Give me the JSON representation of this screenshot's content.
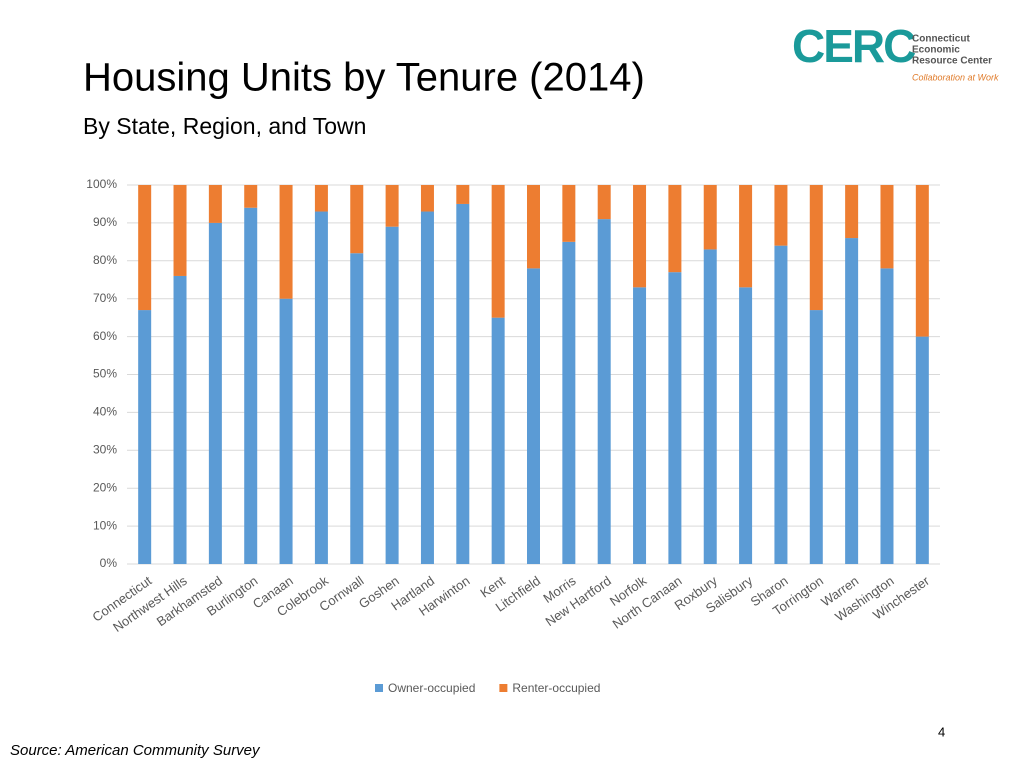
{
  "chart_data": {
    "type": "stacked_bar",
    "title": "Housing Units by Tenure (2014)",
    "subtitle": "By State, Region, and Town",
    "categories": [
      "Connecticut",
      "Northwest Hills",
      "Barkhamsted",
      "Burlington",
      "Canaan",
      "Colebrook",
      "Cornwall",
      "Goshen",
      "Hartland",
      "Harwinton",
      "Kent",
      "Litchfield",
      "Morris",
      "New Hartford",
      "Norfolk",
      "North Canaan",
      "Roxbury",
      "Salisbury",
      "Sharon",
      "Torrington",
      "Warren",
      "Washington",
      "Winchester"
    ],
    "series": [
      {
        "name": "Owner-occupied",
        "color": "#5b9bd5",
        "values": [
          67,
          76,
          90,
          94,
          70,
          93,
          82,
          89,
          93,
          95,
          65,
          78,
          85,
          91,
          73,
          77,
          83,
          73,
          84,
          67,
          86,
          78,
          60
        ]
      },
      {
        "name": "Renter-occupied",
        "color": "#ed7d31",
        "values": [
          33,
          24,
          10,
          6,
          30,
          7,
          18,
          11,
          7,
          5,
          35,
          22,
          15,
          9,
          27,
          23,
          17,
          27,
          16,
          33,
          14,
          22,
          40
        ]
      }
    ],
    "ylim": [
      0,
      100
    ],
    "yticks": [
      {
        "value": 0,
        "label": "0%"
      },
      {
        "value": 10,
        "label": "10%"
      },
      {
        "value": 20,
        "label": "20%"
      },
      {
        "value": 30,
        "label": "30%"
      },
      {
        "value": 40,
        "label": "40%"
      },
      {
        "value": 50,
        "label": "50%"
      },
      {
        "value": 60,
        "label": "60%"
      },
      {
        "value": 70,
        "label": "70%"
      },
      {
        "value": 80,
        "label": "80%"
      },
      {
        "value": 90,
        "label": "90%"
      },
      {
        "value": 100,
        "label": "100%"
      }
    ],
    "grid": true,
    "legend": "bottom"
  },
  "logo": {
    "mark": "CERC",
    "name_line1": "Connecticut",
    "name_line2": "Economic",
    "name_line3": "Resource Center",
    "tagline": "Collaboration at Work"
  },
  "source": "Source: American Community Survey",
  "page_number": "4"
}
